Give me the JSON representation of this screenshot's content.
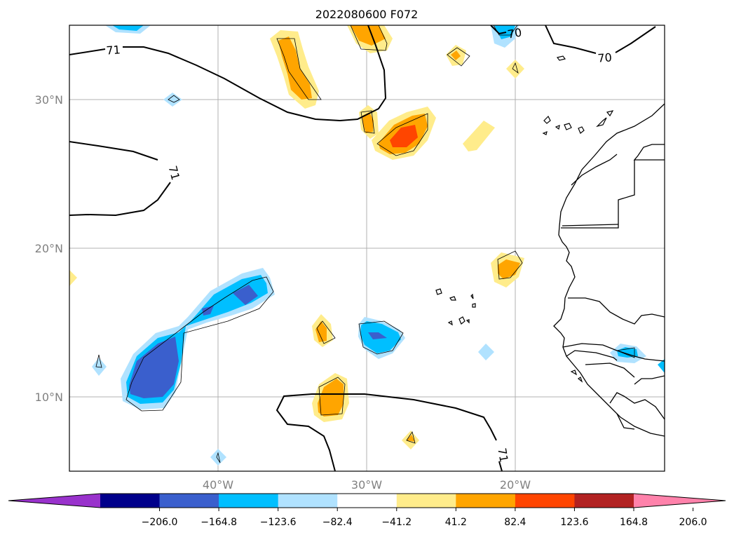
{
  "figure": {
    "title": "2022080600 F072"
  },
  "map": {
    "projection": "PlateCarree",
    "lon_range_deg": [
      -50,
      -10
    ],
    "lat_range_deg": [
      5,
      35
    ],
    "gridlines": true,
    "x_ticks": [
      {
        "lon": -40,
        "label": "40°W"
      },
      {
        "lon": -30,
        "label": "30°W"
      },
      {
        "lon": -20,
        "label": "20°W"
      }
    ],
    "y_ticks": [
      {
        "lat": 10,
        "label": "10°N"
      },
      {
        "lat": 20,
        "label": "20°N"
      },
      {
        "lat": 30,
        "label": "30°N"
      }
    ],
    "contour_labels": [
      "71",
      "71",
      "70",
      "70",
      "71"
    ]
  },
  "colorbar": {
    "orientation": "horizontal",
    "extend": "both",
    "levels": [
      -206.0,
      -164.8,
      -123.6,
      -82.4,
      -41.2,
      41.2,
      82.4,
      123.6,
      164.8,
      206.0
    ],
    "tick_labels": [
      "−206.0",
      "−164.8",
      "−123.6",
      "−82.4",
      "−41.2",
      "41.2",
      "82.4",
      "123.6",
      "164.8",
      "206.0"
    ],
    "colors": [
      "#9932cc",
      "#00008b",
      "#3a5fcd",
      "#00bfff",
      "#b0e2ff",
      "#ffffff",
      "#ffec8b",
      "#ffa500",
      "#ff4500",
      "#b22222",
      "#ff82ab"
    ]
  }
}
